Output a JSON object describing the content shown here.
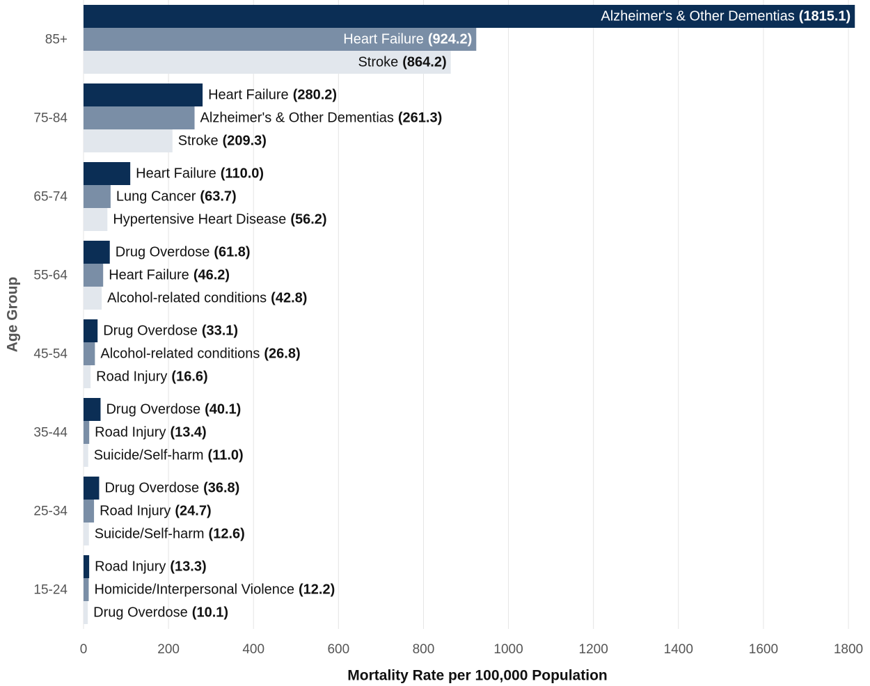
{
  "chart_data": {
    "type": "bar",
    "orientation": "horizontal",
    "xlabel": "Mortality Rate per 100,000 Population",
    "ylabel": "Age Group",
    "categories": [
      "85+",
      "75-84",
      "65-74",
      "55-64",
      "45-54",
      "35-44",
      "25-34",
      "15-24"
    ],
    "series": [
      {
        "color": "#0b2e55",
        "labels": [
          "Alzheimer's & Other Dementias",
          "Heart Failure",
          "Heart Failure",
          "Drug Overdose",
          "Drug Overdose",
          "Drug Overdose",
          "Drug Overdose",
          "Road Injury"
        ],
        "values": [
          1815.1,
          280.2,
          110.0,
          61.8,
          33.1,
          40.1,
          36.8,
          13.3
        ],
        "value_labels": [
          "(1815.1)",
          "(280.2)",
          "(110.0)",
          "(61.8)",
          "(33.1)",
          "(40.1)",
          "(36.8)",
          "(13.3)"
        ]
      },
      {
        "color": "#7a8ea6",
        "labels": [
          "Heart Failure",
          "Alzheimer's & Other Dementias",
          "Lung Cancer",
          "Heart Failure",
          "Alcohol-related conditions",
          "Road Injury",
          "Road Injury",
          "Homicide/Interpersonal Violence"
        ],
        "values": [
          924.2,
          261.3,
          63.7,
          46.2,
          26.8,
          13.4,
          24.7,
          12.2
        ],
        "value_labels": [
          "(924.2)",
          "(261.3)",
          "(63.7)",
          "(46.2)",
          "(26.8)",
          "(13.4)",
          "(24.7)",
          "(12.2)"
        ]
      },
      {
        "color": "#e2e7ed",
        "labels": [
          "Stroke",
          "Stroke",
          "Hypertensive Heart Disease",
          "Alcohol-related conditions",
          "Road Injury",
          "Suicide/Self-harm",
          "Suicide/Self-harm",
          "Drug Overdose"
        ],
        "values": [
          864.2,
          209.3,
          56.2,
          42.8,
          16.6,
          11.0,
          12.6,
          10.1
        ],
        "value_labels": [
          "(864.2)",
          "(209.3)",
          "(56.2)",
          "(42.8)",
          "(16.6)",
          "(11.0)",
          "(12.6)",
          "(10.1)"
        ]
      }
    ],
    "xlim": [
      0,
      1818
    ],
    "xticks": [
      0,
      200,
      400,
      600,
      800,
      1000,
      1200,
      1400,
      1600,
      1800
    ],
    "grid": true
  }
}
